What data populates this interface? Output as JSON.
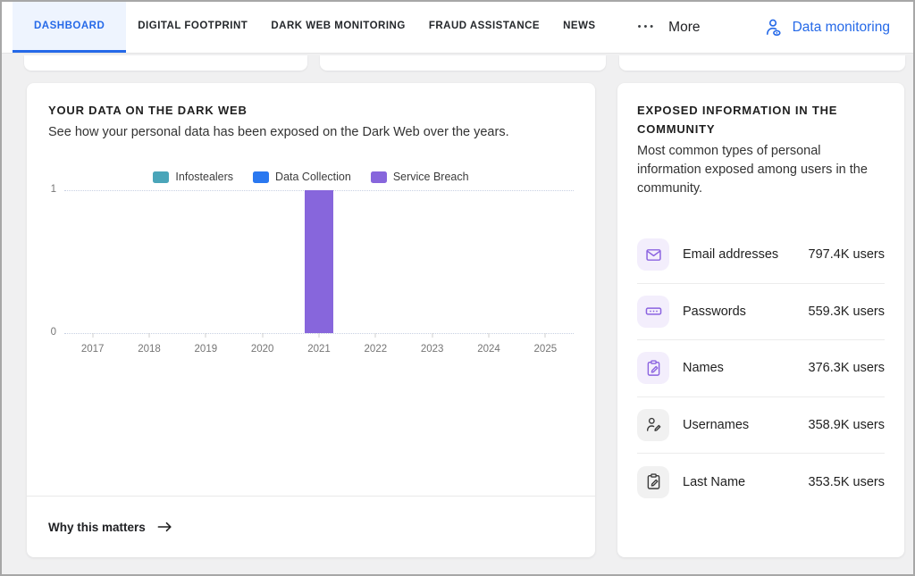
{
  "nav": {
    "tabs": [
      {
        "label": "DASHBOARD",
        "active": true
      },
      {
        "label": "DIGITAL FOOTPRINT",
        "active": false
      },
      {
        "label": "DARK WEB MONITORING",
        "active": false
      },
      {
        "label": "FRAUD ASSISTANCE",
        "active": false
      },
      {
        "label": "NEWS",
        "active": false
      }
    ],
    "more_dots": "•••",
    "more_label": "More",
    "data_monitoring_label": "Data monitoring",
    "accent_color": "#2569e8"
  },
  "dark_web_card": {
    "title": "YOUR DATA ON THE DARK WEB",
    "subtitle": "See how your personal data has been exposed on the Dark Web over the years.",
    "footer_link": "Why this matters",
    "footer_arrow_icon": "arrow-right-icon"
  },
  "chart_data": {
    "type": "bar",
    "title": "YOUR DATA ON THE DARK WEB",
    "categories": [
      "2017",
      "2018",
      "2019",
      "2020",
      "2021",
      "2022",
      "2023",
      "2024",
      "2025"
    ],
    "series": [
      {
        "name": "Infostealers",
        "color": "#4aa5b9",
        "values": [
          0,
          0,
          0,
          0,
          0,
          0,
          0,
          0,
          0
        ]
      },
      {
        "name": "Data Collection",
        "color": "#2a78f0",
        "values": [
          0,
          0,
          0,
          0,
          0,
          0,
          0,
          0,
          0
        ]
      },
      {
        "name": "Service Breach",
        "color": "#8766dc",
        "values": [
          0,
          0,
          0,
          0,
          1,
          0,
          0,
          0,
          0
        ]
      }
    ],
    "xlabel": "",
    "ylabel": "",
    "ylim": [
      0,
      1
    ],
    "yticks": [
      0,
      1
    ],
    "legend_position": "top-center",
    "grid": "horizontal-dotted"
  },
  "exposed_card": {
    "title": "EXPOSED INFORMATION IN THE COMMUNITY",
    "description": "Most common types of personal information exposed among users in the community.",
    "items": [
      {
        "label": "Email addresses",
        "value": "797.4K users",
        "icon": "envelope-icon",
        "tint": "purple"
      },
      {
        "label": "Passwords",
        "value": "559.3K users",
        "icon": "password-field-icon",
        "tint": "purple"
      },
      {
        "label": "Names",
        "value": "376.3K users",
        "icon": "clipboard-edit-icon",
        "tint": "purple"
      },
      {
        "label": "Usernames",
        "value": "358.9K users",
        "icon": "person-edit-icon",
        "tint": "gray"
      },
      {
        "label": "Last Name",
        "value": "353.5K users",
        "icon": "clipboard-edit-icon",
        "tint": "gray"
      }
    ]
  },
  "colors": {
    "page_background": "#f0f0f1",
    "active_tab_background": "#eef4fe",
    "accent_blue": "#2569e8",
    "bar_purple": "#8766dc",
    "legend_teal": "#4aa5b9",
    "legend_blue": "#2a78f0",
    "axis_text": "#757575"
  }
}
